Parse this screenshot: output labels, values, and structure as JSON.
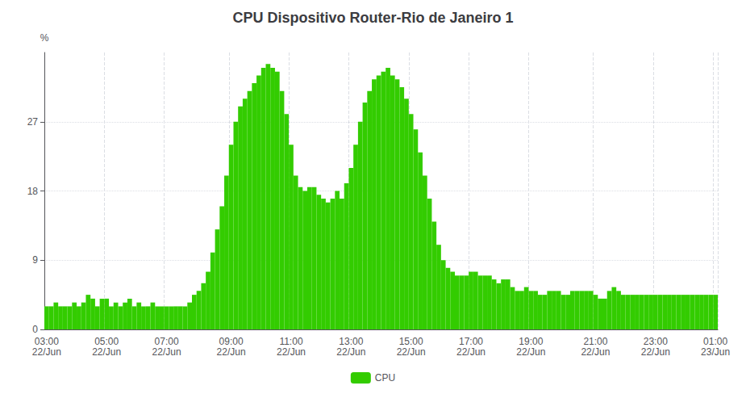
{
  "chart_data": {
    "type": "bar",
    "title": "CPU Dispositivo Router-Rio de Janeiro 1",
    "ylabel": "%",
    "categories": [
      "03:00\n22/Jun",
      null,
      null,
      null,
      null,
      null,
      null,
      null,
      null,
      null,
      null,
      null,
      null,
      "05:00\n22/Jun",
      null,
      null,
      null,
      null,
      null,
      null,
      null,
      null,
      null,
      null,
      null,
      null,
      "07:00\n22/Jun",
      null,
      null,
      null,
      null,
      null,
      null,
      null,
      null,
      null,
      null,
      null,
      null,
      null,
      "09:00\n22/Jun",
      null,
      null,
      null,
      null,
      null,
      null,
      null,
      null,
      null,
      null,
      null,
      null,
      "11:00\n22/Jun",
      null,
      null,
      null,
      null,
      null,
      null,
      null,
      null,
      null,
      null,
      null,
      null,
      "13:00\n22/Jun",
      null,
      null,
      null,
      null,
      null,
      null,
      null,
      null,
      null,
      null,
      null,
      null,
      "15:00\n22/Jun",
      null,
      null,
      null,
      null,
      null,
      null,
      null,
      null,
      null,
      null,
      null,
      null,
      "17:00\n22/Jun",
      null,
      null,
      null,
      null,
      null,
      null,
      null,
      null,
      null,
      null,
      null,
      null,
      "19:00\n22/Jun",
      null,
      null,
      null,
      null,
      null,
      null,
      null,
      null,
      null,
      null,
      null,
      null,
      null,
      "21:00\n22/Jun",
      null,
      null,
      null,
      null,
      null,
      null,
      null,
      null,
      null,
      null,
      null,
      null,
      "23:00\n22/Jun",
      null,
      null,
      null,
      null,
      null,
      null,
      null,
      null,
      null,
      null,
      null,
      null,
      "01:00\n23/Jun"
    ],
    "series": [
      {
        "name": "CPU",
        "color": "#33cc00",
        "values": [
          3.0,
          3.0,
          3.5,
          3.0,
          3.0,
          3.0,
          3.5,
          3.0,
          3.5,
          4.5,
          4.0,
          3.0,
          4.0,
          4.0,
          3.0,
          3.5,
          3.0,
          3.5,
          4.0,
          3.0,
          3.5,
          3.0,
          3.0,
          3.5,
          3.0,
          3.0,
          3.0,
          3.0,
          3.0,
          3.0,
          3.0,
          3.5,
          4.5,
          5.0,
          6.0,
          7.5,
          10.0,
          13.0,
          16.0,
          20.0,
          24.0,
          27.0,
          29.0,
          30.0,
          31.0,
          32.0,
          33.0,
          34.0,
          34.5,
          34.0,
          33.5,
          31.0,
          28.0,
          24.0,
          20.0,
          18.5,
          18.0,
          18.5,
          18.5,
          17.5,
          17.0,
          16.5,
          17.0,
          18.0,
          17.0,
          19.0,
          21.0,
          24.0,
          27.0,
          29.5,
          31.0,
          32.5,
          33.0,
          33.5,
          34.0,
          33.0,
          32.5,
          31.5,
          30.0,
          28.0,
          26.0,
          23.0,
          20.0,
          17.0,
          14.0,
          11.0,
          9.0,
          8.0,
          7.5,
          7.0,
          7.0,
          7.0,
          7.5,
          7.5,
          7.0,
          7.0,
          7.0,
          6.5,
          6.0,
          6.5,
          6.5,
          5.5,
          5.0,
          5.0,
          5.5,
          5.0,
          5.0,
          4.5,
          4.5,
          5.0,
          5.0,
          5.0,
          4.5,
          4.5,
          5.0,
          5.0,
          5.0,
          5.0,
          5.0,
          4.5,
          4.0,
          4.0,
          5.0,
          5.5,
          5.0,
          4.5,
          4.5,
          4.5,
          4.5,
          4.5,
          4.5,
          4.5,
          4.5,
          4.5,
          4.5,
          4.5,
          4.5,
          4.5,
          4.5,
          4.5,
          4.5,
          4.5,
          4.5,
          4.5,
          4.5,
          4.5
        ]
      }
    ],
    "ylim": [
      0,
      36
    ],
    "yticks": [
      0,
      9,
      18,
      27
    ],
    "grid": true,
    "legend": "bottom"
  }
}
